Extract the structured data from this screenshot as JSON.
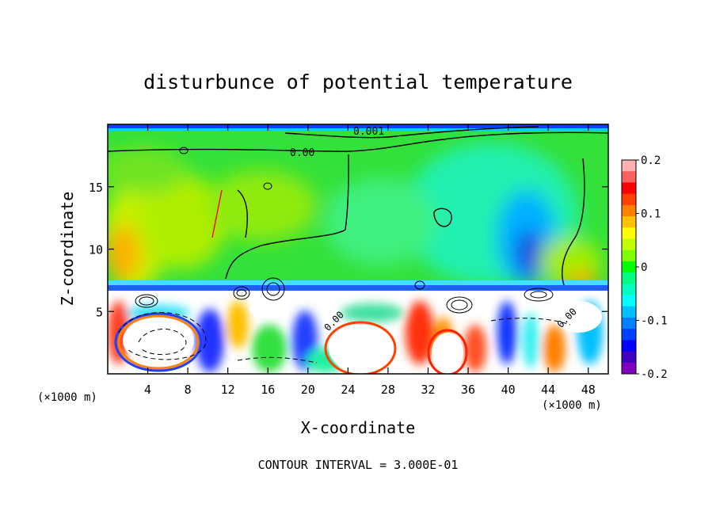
{
  "chart_data": {
    "type": "heatmap",
    "title": "disturbunce of potential temperature",
    "xlabel": "X-coordinate",
    "ylabel": "Z-coordinate",
    "x_unit": "(×1000 m)",
    "z_unit": "(×1000 m)",
    "xlim": [
      0,
      50
    ],
    "ylim": [
      0,
      20
    ],
    "x_ticks": [
      4,
      8,
      12,
      16,
      20,
      24,
      28,
      32,
      36,
      40,
      44,
      48
    ],
    "y_ticks": [
      5,
      10,
      15
    ],
    "colorbar": {
      "range": [
        -0.2,
        0.2
      ],
      "tick_labels": [
        "0.2",
        "0.1",
        "0",
        "-0.1",
        "-0.2"
      ],
      "tick_values": [
        0.2,
        0.1,
        0,
        -0.1,
        -0.2
      ],
      "colors": [
        "#ffb0b0",
        "#ff6060",
        "#ff0000",
        "#ff4000",
        "#ff8000",
        "#ffc000",
        "#ffff00",
        "#c0ff00",
        "#80ff00",
        "#00ff00",
        "#00ff80",
        "#00ffc0",
        "#00ffff",
        "#00c0ff",
        "#0080ff",
        "#0040ff",
        "#0000ff",
        "#4000c0",
        "#8000c0"
      ]
    },
    "contour_labels": [
      {
        "text": "0.00",
        "x": 22.0,
        "y": 17.7
      },
      {
        "text": "0.001",
        "x": 28.0,
        "y": 19.3
      },
      {
        "text": "0.00",
        "x": 23.0,
        "y": 4.4
      },
      {
        "text": "0.00",
        "x": 45.0,
        "y": 4.6
      }
    ],
    "footer": "CONTOUR INTERVAL = 3.000E-01",
    "colors": {
      "grid_frame": "#000000",
      "background": "#ffffff"
    }
  }
}
